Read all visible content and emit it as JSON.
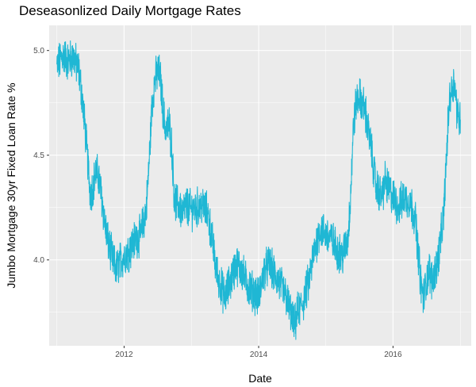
{
  "chart_data": {
    "type": "line",
    "title": "Deseasonlized Daily Mortgage Rates",
    "xlabel": "Date",
    "ylabel": "Jumbo Mortgage 30yr Fixed Loan Rate %",
    "x_tick_labels": [
      "2012",
      "2014",
      "2016"
    ],
    "y_tick_labels": [
      "4.0",
      "4.5",
      "5.0"
    ],
    "xlim": [
      "2010-11-20",
      "2017-03-01"
    ],
    "ylim": [
      3.59,
      5.12
    ],
    "grid": true,
    "legend": "none",
    "colors": {
      "panel_bg": "#ebebeb",
      "grid": "#ffffff",
      "line": "#1fb7d4",
      "tick_text": "#4d4d4d",
      "tick_mark": "#333333"
    },
    "series": [
      {
        "x": [
          "2011-01-01",
          "2011-02-01",
          "2011-03-01",
          "2011-04-01",
          "2011-05-01",
          "2011-05-15",
          "2011-06-01",
          "2011-06-15",
          "2011-07-01",
          "2011-07-15",
          "2011-08-01",
          "2011-08-15",
          "2011-09-01",
          "2011-09-15",
          "2011-10-01",
          "2011-11-01",
          "2011-11-20",
          "2011-12-01",
          "2012-01-01",
          "2012-02-01",
          "2012-03-01",
          "2012-04-01",
          "2012-05-01",
          "2012-05-15",
          "2012-06-01",
          "2012-06-15",
          "2012-07-01",
          "2012-07-15",
          "2012-08-01",
          "2012-08-15",
          "2012-09-01",
          "2012-09-15",
          "2012-10-01",
          "2012-11-01",
          "2012-11-15",
          "2012-12-01",
          "2013-01-01",
          "2013-02-01",
          "2013-03-01",
          "2013-04-01",
          "2013-05-01",
          "2013-05-15",
          "2013-06-01",
          "2013-07-01",
          "2013-08-01",
          "2013-09-01",
          "2013-10-01",
          "2013-11-01",
          "2013-12-01",
          "2014-01-01",
          "2014-02-01",
          "2014-03-01",
          "2014-04-01",
          "2014-05-01",
          "2014-06-01",
          "2014-07-01",
          "2014-07-15",
          "2014-08-01",
          "2014-09-01",
          "2014-10-01",
          "2014-11-01",
          "2014-12-01",
          "2015-01-01",
          "2015-02-01",
          "2015-03-01",
          "2015-04-01",
          "2015-05-01",
          "2015-05-15",
          "2015-06-01",
          "2015-06-15",
          "2015-07-01",
          "2015-08-01",
          "2015-09-01",
          "2015-10-01",
          "2015-11-01",
          "2015-11-20",
          "2015-12-01",
          "2016-01-01",
          "2016-02-01",
          "2016-03-01",
          "2016-04-01",
          "2016-05-01",
          "2016-06-01",
          "2016-06-15",
          "2016-07-01",
          "2016-07-15",
          "2016-08-01",
          "2016-09-01",
          "2016-10-01",
          "2016-10-15",
          "2016-11-01",
          "2016-11-15",
          "2016-12-01",
          "2016-12-15",
          "2017-01-01"
        ],
        "values": [
          4.92,
          4.98,
          4.95,
          4.97,
          4.9,
          4.8,
          4.65,
          4.5,
          4.32,
          4.35,
          4.42,
          4.4,
          4.3,
          4.2,
          4.1,
          4.0,
          3.95,
          3.98,
          4.02,
          4.05,
          4.1,
          4.12,
          4.25,
          4.45,
          4.75,
          4.85,
          4.9,
          4.88,
          4.7,
          4.62,
          4.65,
          4.55,
          4.28,
          4.25,
          4.22,
          4.26,
          4.24,
          4.25,
          4.26,
          4.22,
          4.05,
          3.95,
          3.9,
          3.82,
          3.9,
          3.98,
          3.95,
          3.88,
          3.85,
          3.82,
          3.95,
          3.98,
          3.92,
          3.88,
          3.82,
          3.72,
          3.68,
          3.75,
          3.8,
          3.9,
          4.05,
          4.15,
          4.12,
          4.1,
          4.05,
          4.02,
          4.1,
          4.3,
          4.65,
          4.75,
          4.78,
          4.72,
          4.55,
          4.35,
          4.3,
          4.38,
          4.35,
          4.3,
          4.25,
          4.3,
          4.28,
          4.2,
          3.88,
          3.82,
          3.9,
          3.95,
          3.9,
          4.0,
          4.2,
          4.45,
          4.75,
          4.82,
          4.85,
          4.7,
          4.67
        ]
      }
    ]
  }
}
